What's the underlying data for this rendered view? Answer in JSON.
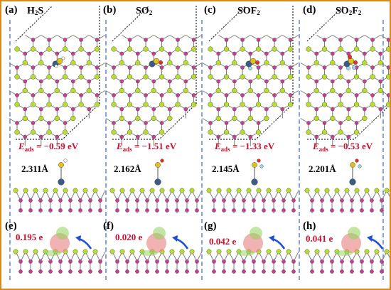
{
  "colors": {
    "frame": "#d8891e",
    "panel_divider": "#4a6fc9",
    "energy_text": "#c8102e",
    "charge_text": "#c8102e",
    "atom_magenta": "#c83c9c",
    "atom_green": "#b8dd32",
    "dopant_blue": "#3a5a8a",
    "arrow_blue": "#1f4fd6",
    "density_red": "#e88a88",
    "density_green": "#8fd45a"
  },
  "panels": [
    {
      "top_label": "(a)",
      "molecule": "H",
      "molecule_sub": "2",
      "molecule_rest": "S",
      "energy_symbol": "E",
      "energy_sub": "ads",
      "energy_value": "= −0.59 eV",
      "bond_length": "2.311Å",
      "bottom_label": "(e)",
      "charge": "0.195 e",
      "adsorbate_atoms": [
        "sulfur-icon",
        "hydrogen-icon"
      ]
    },
    {
      "top_label": "(b)",
      "molecule": "SO",
      "molecule_sub": "2",
      "molecule_rest": "",
      "energy_symbol": "E",
      "energy_sub": "ads",
      "energy_value": "= −1.51 eV",
      "bond_length": "2.162Å",
      "bottom_label": "(f)",
      "charge": "0.020 e",
      "adsorbate_atoms": [
        "sulfur-icon",
        "oxygen-icon"
      ]
    },
    {
      "top_label": "(c)",
      "molecule": "SOF",
      "molecule_sub": "2",
      "molecule_rest": "",
      "energy_symbol": "E",
      "energy_sub": "ads",
      "energy_value": "= −1.33 eV",
      "bond_length": "2.145Å",
      "bottom_label": "(g)",
      "charge": "0.042 e",
      "adsorbate_atoms": [
        "sulfur-icon",
        "oxygen-icon",
        "fluorine-icon"
      ]
    },
    {
      "top_label": "(d)",
      "molecule": "SO",
      "molecule_sub": "2",
      "molecule_rest": "F",
      "molecule_sub2": "2",
      "energy_symbol": "E",
      "energy_sub": "ads",
      "energy_value": "= −0.53 eV",
      "bond_length": "2.201Å",
      "bottom_label": "(h)",
      "charge": "0.041 e",
      "adsorbate_atoms": [
        "sulfur-icon",
        "oxygen-icon",
        "fluorine-icon"
      ]
    }
  ]
}
